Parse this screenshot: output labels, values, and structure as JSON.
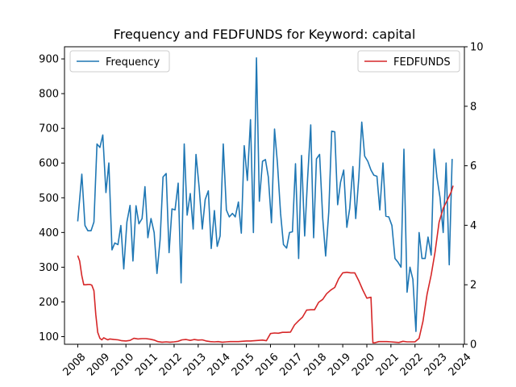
{
  "chart_data": {
    "type": "line",
    "title": "Frequency and FEDFUNDS for Keyword: capital",
    "xlabel": "",
    "ylabel_left": "",
    "ylabel_right": "",
    "xlim": [
      2007.45,
      2024.05
    ],
    "ylim_left": [
      78,
      935
    ],
    "ylim_right": [
      0,
      10
    ],
    "x_ticks": [
      2008,
      2009,
      2010,
      2011,
      2012,
      2013,
      2014,
      2015,
      2016,
      2017,
      2018,
      2019,
      2020,
      2021,
      2022,
      2023,
      2024
    ],
    "y_ticks_left": [
      100,
      200,
      300,
      400,
      500,
      600,
      700,
      800,
      900
    ],
    "y_ticks_right": [
      0,
      2,
      4,
      6,
      8,
      10
    ],
    "grid": false,
    "series": [
      {
        "name": "Frequency",
        "axis": "left",
        "color": "#1f77b4",
        "legend_position": "top-left",
        "points": [
          [
            2008.0,
            432
          ],
          [
            2008.17,
            568
          ],
          [
            2008.3,
            420
          ],
          [
            2008.42,
            405
          ],
          [
            2008.55,
            405
          ],
          [
            2008.67,
            430
          ],
          [
            2008.8,
            655
          ],
          [
            2008.92,
            645
          ],
          [
            2009.04,
            681
          ],
          [
            2009.17,
            515
          ],
          [
            2009.29,
            600
          ],
          [
            2009.42,
            350
          ],
          [
            2009.54,
            370
          ],
          [
            2009.67,
            365
          ],
          [
            2009.79,
            420
          ],
          [
            2009.91,
            295
          ],
          [
            2010.04,
            430
          ],
          [
            2010.17,
            478
          ],
          [
            2010.29,
            318
          ],
          [
            2010.42,
            477
          ],
          [
            2010.54,
            425
          ],
          [
            2010.67,
            440
          ],
          [
            2010.79,
            532
          ],
          [
            2010.91,
            385
          ],
          [
            2011.04,
            440
          ],
          [
            2011.17,
            400
          ],
          [
            2011.29,
            282
          ],
          [
            2011.42,
            380
          ],
          [
            2011.54,
            560
          ],
          [
            2011.67,
            570
          ],
          [
            2011.79,
            342
          ],
          [
            2011.91,
            468
          ],
          [
            2012.04,
            465
          ],
          [
            2012.17,
            542
          ],
          [
            2012.29,
            255
          ],
          [
            2012.42,
            655
          ],
          [
            2012.54,
            450
          ],
          [
            2012.67,
            512
          ],
          [
            2012.79,
            410
          ],
          [
            2012.91,
            625
          ],
          [
            2013.04,
            530
          ],
          [
            2013.17,
            410
          ],
          [
            2013.29,
            495
          ],
          [
            2013.42,
            520
          ],
          [
            2013.54,
            354
          ],
          [
            2013.67,
            463
          ],
          [
            2013.79,
            360
          ],
          [
            2013.91,
            390
          ],
          [
            2014.04,
            655
          ],
          [
            2014.17,
            465
          ],
          [
            2014.29,
            445
          ],
          [
            2014.42,
            455
          ],
          [
            2014.54,
            445
          ],
          [
            2014.67,
            488
          ],
          [
            2014.79,
            398
          ],
          [
            2014.91,
            650
          ],
          [
            2015.04,
            550
          ],
          [
            2015.17,
            725
          ],
          [
            2015.29,
            400
          ],
          [
            2015.42,
            903
          ],
          [
            2015.54,
            490
          ],
          [
            2015.67,
            605
          ],
          [
            2015.79,
            610
          ],
          [
            2015.91,
            560
          ],
          [
            2016.04,
            428
          ],
          [
            2016.17,
            698
          ],
          [
            2016.29,
            600
          ],
          [
            2016.42,
            455
          ],
          [
            2016.54,
            365
          ],
          [
            2016.67,
            355
          ],
          [
            2016.79,
            400
          ],
          [
            2016.91,
            402
          ],
          [
            2017.04,
            598
          ],
          [
            2017.17,
            325
          ],
          [
            2017.29,
            622
          ],
          [
            2017.42,
            390
          ],
          [
            2017.54,
            555
          ],
          [
            2017.67,
            710
          ],
          [
            2017.79,
            385
          ],
          [
            2017.91,
            612
          ],
          [
            2018.04,
            625
          ],
          [
            2018.17,
            440
          ],
          [
            2018.29,
            332
          ],
          [
            2018.42,
            460
          ],
          [
            2018.54,
            692
          ],
          [
            2018.67,
            690
          ],
          [
            2018.79,
            480
          ],
          [
            2018.91,
            545
          ],
          [
            2019.04,
            580
          ],
          [
            2019.17,
            415
          ],
          [
            2019.29,
            470
          ],
          [
            2019.42,
            590
          ],
          [
            2019.54,
            440
          ],
          [
            2019.67,
            560
          ],
          [
            2019.79,
            718
          ],
          [
            2019.91,
            620
          ],
          [
            2020.04,
            605
          ],
          [
            2020.17,
            580
          ],
          [
            2020.29,
            565
          ],
          [
            2020.42,
            562
          ],
          [
            2020.54,
            465
          ],
          [
            2020.67,
            600
          ],
          [
            2020.79,
            447
          ],
          [
            2020.91,
            445
          ],
          [
            2021.04,
            420
          ],
          [
            2021.17,
            325
          ],
          [
            2021.29,
            315
          ],
          [
            2021.42,
            300
          ],
          [
            2021.54,
            640
          ],
          [
            2021.67,
            228
          ],
          [
            2021.79,
            300
          ],
          [
            2021.91,
            265
          ],
          [
            2022.04,
            115
          ],
          [
            2022.17,
            400
          ],
          [
            2022.29,
            325
          ],
          [
            2022.42,
            325
          ],
          [
            2022.54,
            387
          ],
          [
            2022.67,
            335
          ],
          [
            2022.79,
            640
          ],
          [
            2022.91,
            560
          ],
          [
            2023.04,
            500
          ],
          [
            2023.17,
            400
          ],
          [
            2023.29,
            600
          ],
          [
            2023.42,
            307
          ],
          [
            2023.54,
            612
          ]
        ]
      },
      {
        "name": "FEDFUNDS",
        "axis": "right",
        "color": "#d62728",
        "legend_position": "top-right",
        "points": [
          [
            2008.0,
            2.98
          ],
          [
            2008.08,
            2.8
          ],
          [
            2008.17,
            2.3
          ],
          [
            2008.25,
            2.0
          ],
          [
            2008.33,
            2.0
          ],
          [
            2008.42,
            2.01
          ],
          [
            2008.5,
            2.01
          ],
          [
            2008.58,
            1.99
          ],
          [
            2008.67,
            1.8
          ],
          [
            2008.75,
            1.0
          ],
          [
            2008.83,
            0.4
          ],
          [
            2008.92,
            0.2
          ],
          [
            2009.0,
            0.15
          ],
          [
            2009.08,
            0.22
          ],
          [
            2009.17,
            0.18
          ],
          [
            2009.25,
            0.15
          ],
          [
            2009.33,
            0.18
          ],
          [
            2009.5,
            0.16
          ],
          [
            2009.67,
            0.15
          ],
          [
            2009.83,
            0.12
          ],
          [
            2010.0,
            0.11
          ],
          [
            2010.17,
            0.13
          ],
          [
            2010.33,
            0.2
          ],
          [
            2010.5,
            0.18
          ],
          [
            2010.67,
            0.19
          ],
          [
            2010.83,
            0.19
          ],
          [
            2011.0,
            0.17
          ],
          [
            2011.17,
            0.14
          ],
          [
            2011.33,
            0.09
          ],
          [
            2011.5,
            0.07
          ],
          [
            2011.67,
            0.08
          ],
          [
            2011.83,
            0.07
          ],
          [
            2012.0,
            0.08
          ],
          [
            2012.17,
            0.1
          ],
          [
            2012.33,
            0.15
          ],
          [
            2012.5,
            0.16
          ],
          [
            2012.67,
            0.13
          ],
          [
            2012.83,
            0.16
          ],
          [
            2013.0,
            0.14
          ],
          [
            2013.17,
            0.15
          ],
          [
            2013.33,
            0.11
          ],
          [
            2013.5,
            0.09
          ],
          [
            2013.67,
            0.08
          ],
          [
            2013.83,
            0.09
          ],
          [
            2014.0,
            0.07
          ],
          [
            2014.17,
            0.08
          ],
          [
            2014.33,
            0.09
          ],
          [
            2014.5,
            0.09
          ],
          [
            2014.67,
            0.09
          ],
          [
            2014.83,
            0.1
          ],
          [
            2015.0,
            0.11
          ],
          [
            2015.17,
            0.11
          ],
          [
            2015.33,
            0.12
          ],
          [
            2015.5,
            0.13
          ],
          [
            2015.67,
            0.14
          ],
          [
            2015.83,
            0.12
          ],
          [
            2016.0,
            0.36
          ],
          [
            2016.17,
            0.38
          ],
          [
            2016.33,
            0.37
          ],
          [
            2016.5,
            0.4
          ],
          [
            2016.67,
            0.4
          ],
          [
            2016.83,
            0.41
          ],
          [
            2017.0,
            0.65
          ],
          [
            2017.17,
            0.79
          ],
          [
            2017.33,
            0.91
          ],
          [
            2017.5,
            1.15
          ],
          [
            2017.67,
            1.16
          ],
          [
            2017.83,
            1.16
          ],
          [
            2018.0,
            1.41
          ],
          [
            2018.17,
            1.51
          ],
          [
            2018.33,
            1.7
          ],
          [
            2018.5,
            1.82
          ],
          [
            2018.67,
            1.91
          ],
          [
            2018.83,
            2.2
          ],
          [
            2019.0,
            2.4
          ],
          [
            2019.17,
            2.42
          ],
          [
            2019.33,
            2.4
          ],
          [
            2019.5,
            2.4
          ],
          [
            2019.67,
            2.13
          ],
          [
            2019.83,
            1.83
          ],
          [
            2020.0,
            1.55
          ],
          [
            2020.17,
            1.58
          ],
          [
            2020.25,
            0.05
          ],
          [
            2020.33,
            0.05
          ],
          [
            2020.5,
            0.09
          ],
          [
            2020.67,
            0.09
          ],
          [
            2020.83,
            0.09
          ],
          [
            2021.0,
            0.08
          ],
          [
            2021.17,
            0.07
          ],
          [
            2021.33,
            0.06
          ],
          [
            2021.5,
            0.1
          ],
          [
            2021.67,
            0.08
          ],
          [
            2021.83,
            0.08
          ],
          [
            2022.0,
            0.08
          ],
          [
            2022.17,
            0.2
          ],
          [
            2022.33,
            0.77
          ],
          [
            2022.5,
            1.68
          ],
          [
            2022.67,
            2.33
          ],
          [
            2022.83,
            3.08
          ],
          [
            2023.0,
            4.1
          ],
          [
            2023.17,
            4.57
          ],
          [
            2023.33,
            4.83
          ],
          [
            2023.5,
            5.12
          ],
          [
            2023.58,
            5.33
          ]
        ]
      }
    ]
  }
}
